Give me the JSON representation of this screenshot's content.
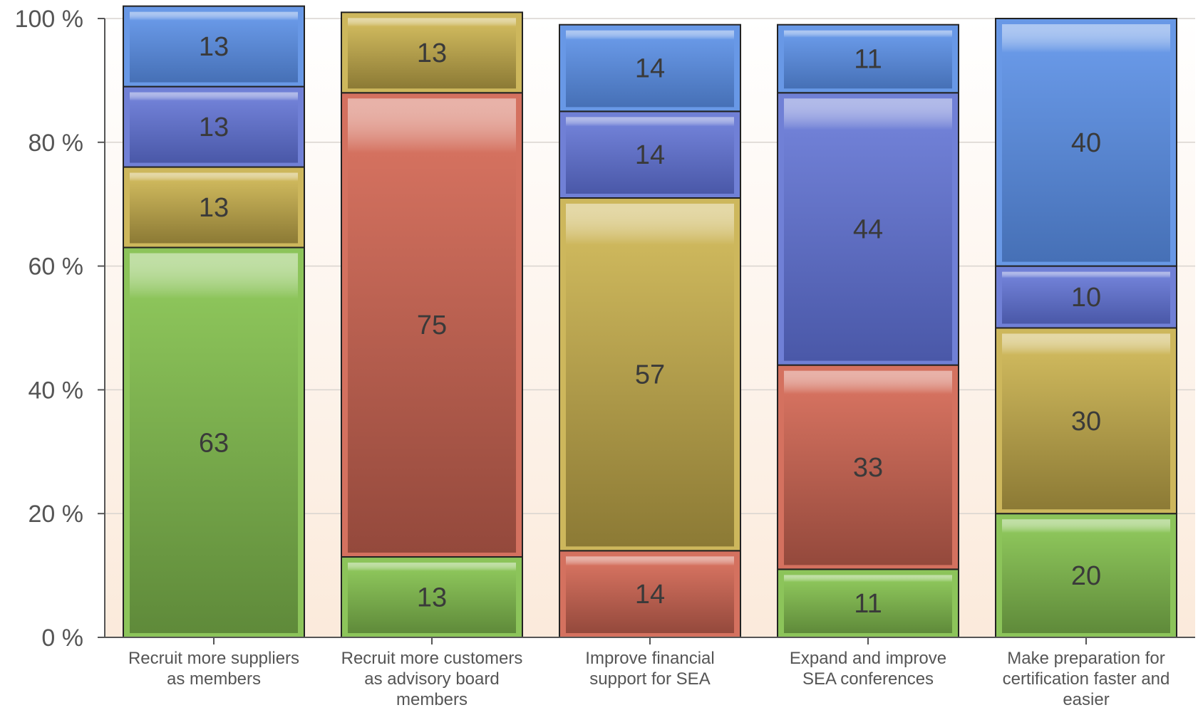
{
  "chart_data": {
    "type": "bar",
    "stacked": true,
    "percent_stacked": true,
    "categories": [
      [
        "Recruit more suppliers",
        "as members"
      ],
      [
        "Recruit more customers",
        "as advisory board",
        "members"
      ],
      [
        "Improve financial",
        "support for SEA"
      ],
      [
        "Expand and improve",
        "SEA conferences"
      ],
      [
        "Make preparation for",
        "certification faster and",
        "easier"
      ]
    ],
    "series": [
      {
        "color": "#8cc45a",
        "dark": "#5f8a3a",
        "values": [
          63,
          13,
          0,
          11,
          20
        ]
      },
      {
        "color": "#d4715f",
        "dark": "#94493c",
        "values": [
          0,
          75,
          14,
          33,
          0
        ]
      },
      {
        "color": "#cdb75c",
        "dark": "#8c7a35",
        "values": [
          13,
          13,
          57,
          0,
          30
        ]
      },
      {
        "color": "#7080d6",
        "dark": "#4a58a8",
        "values": [
          13,
          0,
          14,
          44,
          10
        ]
      },
      {
        "color": "#6898e6",
        "dark": "#4670b6",
        "values": [
          13,
          0,
          14,
          11,
          40
        ]
      }
    ],
    "y_ticks": [
      "0 %",
      "20 %",
      "40 %",
      "60 %",
      "80 %",
      "100 %"
    ],
    "y_tick_values": [
      0,
      20,
      40,
      60,
      80,
      100
    ],
    "ylim": [
      0,
      100
    ],
    "grid": true,
    "legend": "none"
  }
}
